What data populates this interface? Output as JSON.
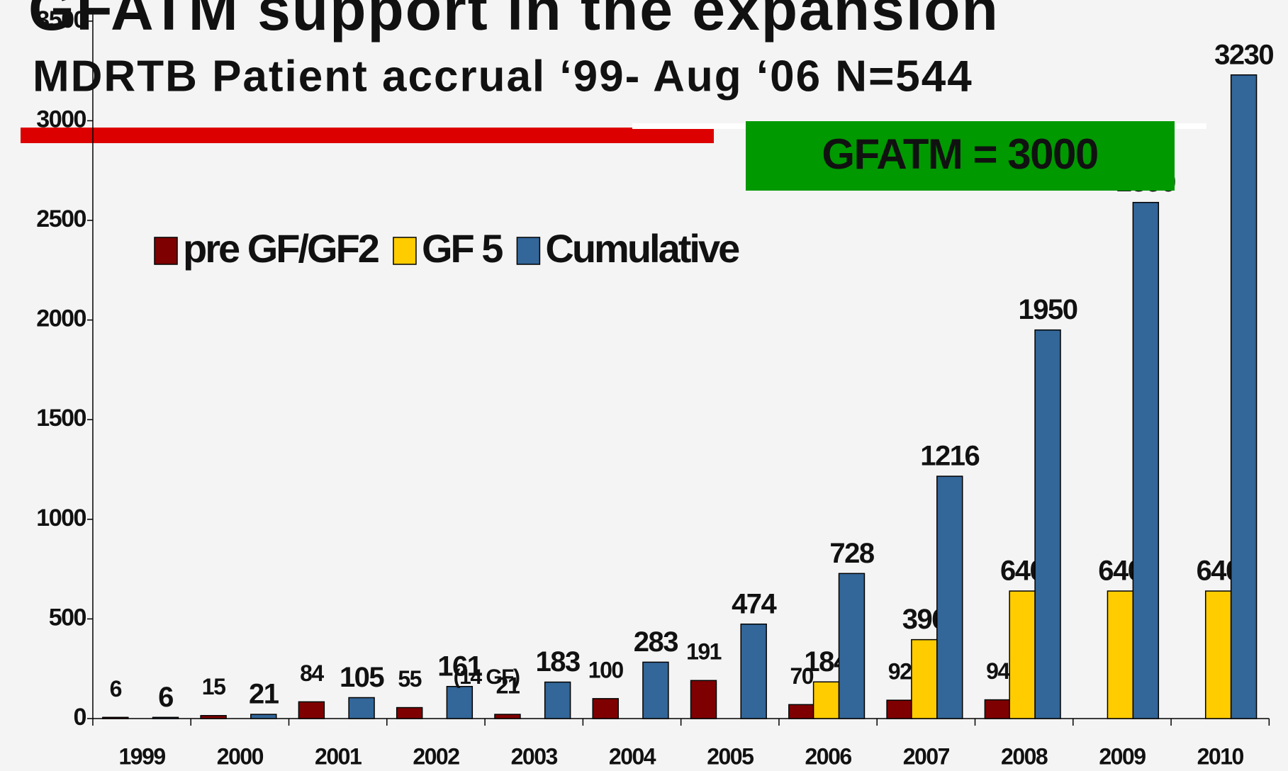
{
  "chart_data": {
    "type": "bar",
    "title": "GFATM support in the expansion",
    "subtitle": "MDRTB Patient accrual ‘99- Aug ‘06  N=544",
    "categories": [
      "1999",
      "2000",
      "2001",
      "2002",
      "2003",
      "2004",
      "2005",
      "2006",
      "2007",
      "2008",
      "2009",
      "2010"
    ],
    "series": [
      {
        "name": "pre GF/GF2",
        "color": "#7f0000",
        "values": [
          6,
          15,
          84,
          55,
          21,
          100,
          191,
          70,
          92,
          94,
          null,
          null
        ]
      },
      {
        "name": "GF 5",
        "color": "#ffcc00",
        "values": [
          null,
          null,
          null,
          null,
          null,
          null,
          null,
          184,
          396,
          640,
          640,
          640
        ]
      },
      {
        "name": "Cumulative",
        "color": "#336699",
        "values": [
          6,
          21,
          105,
          161,
          183,
          283,
          474,
          728,
          1216,
          1950,
          2590,
          3230
        ]
      }
    ],
    "annotations": [
      "(14 GF)",
      "GFATM = 3000"
    ],
    "ylim": [
      0,
      3500
    ],
    "yticks": [
      0,
      500,
      1000,
      1500,
      2000,
      2500,
      3000,
      3500
    ]
  }
}
